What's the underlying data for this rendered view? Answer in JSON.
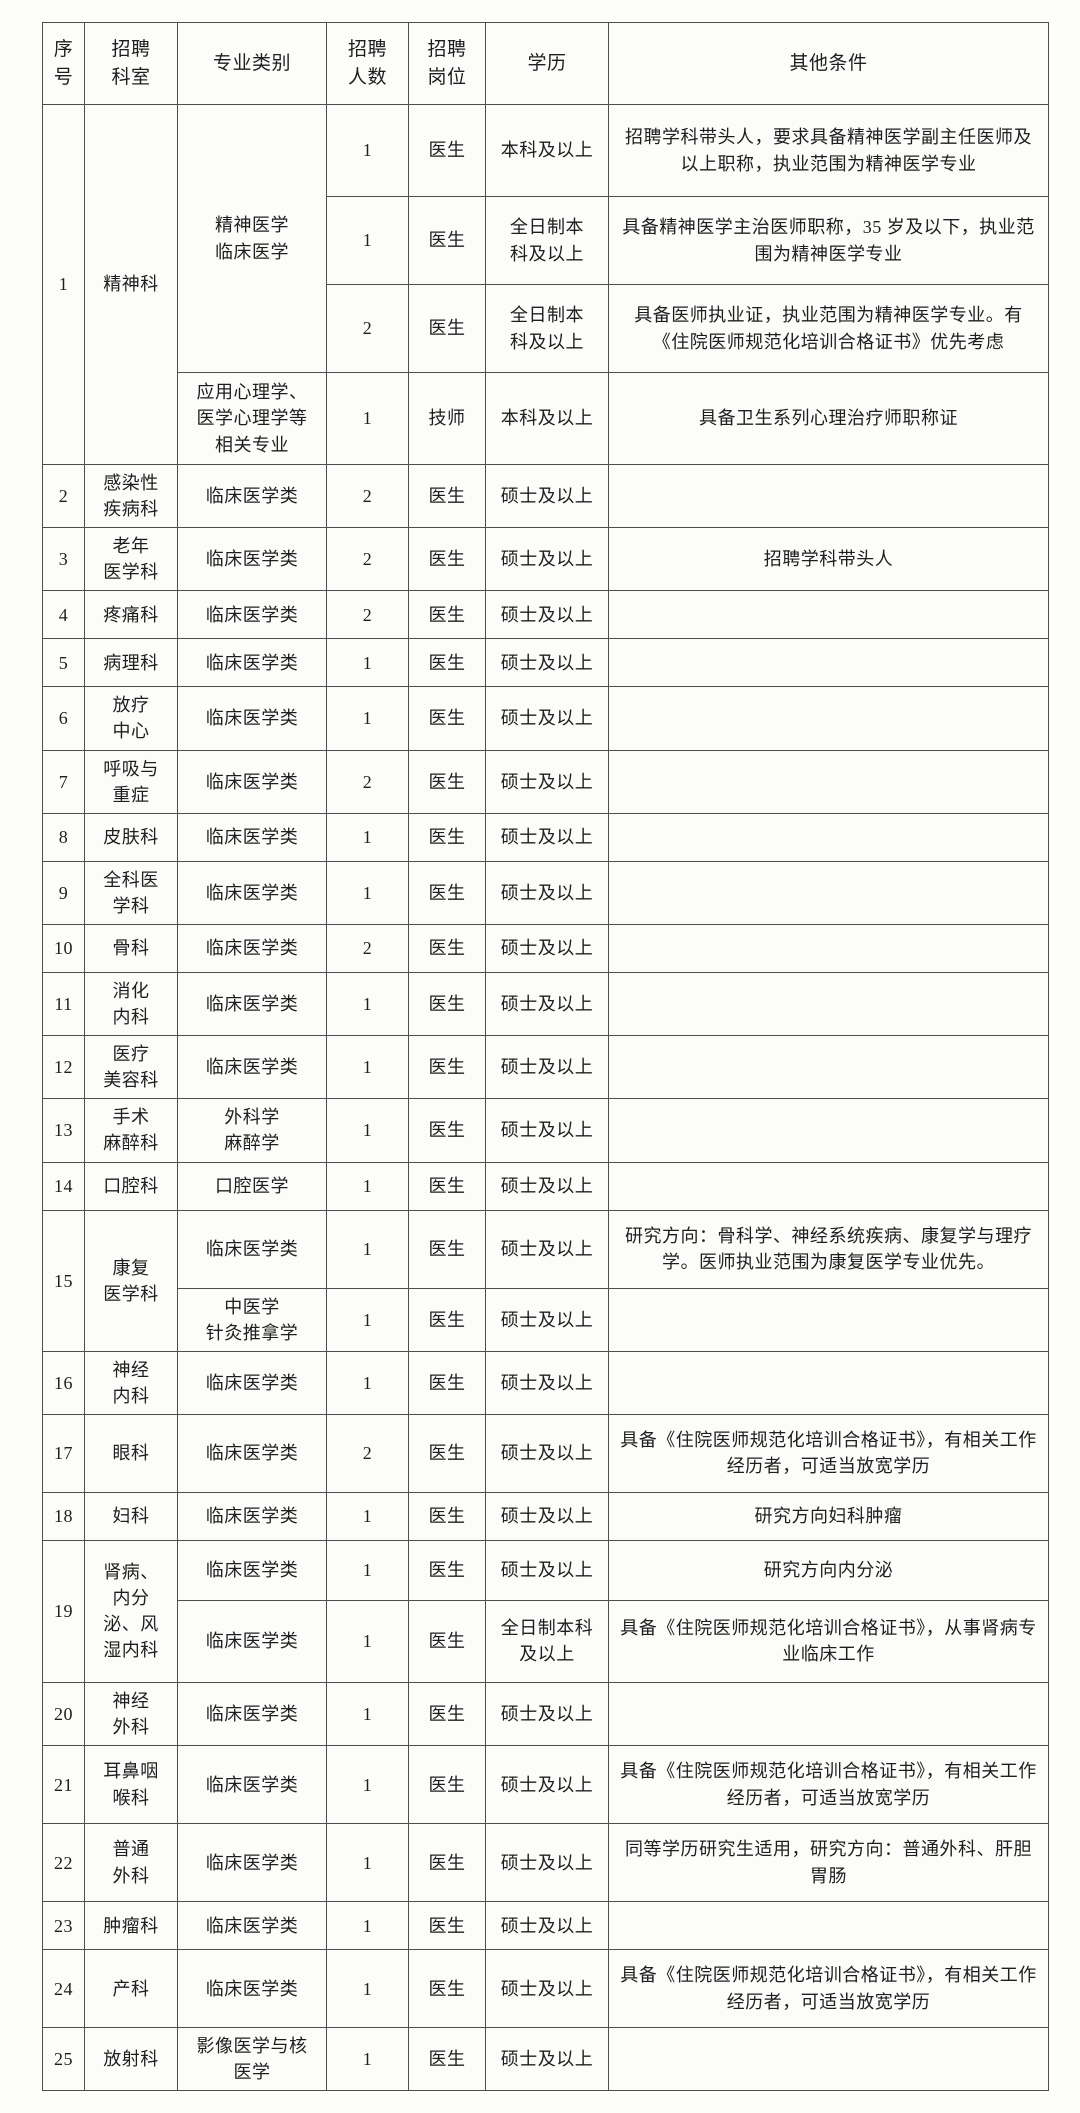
{
  "colors": {
    "page_background": "#fdfdfb",
    "table_background": "#fcfcfa",
    "border": "#4e4e4e",
    "text": "#1e1e1e"
  },
  "table": {
    "headers": [
      "序\n号",
      "招聘\n科室",
      "专业类别",
      "招聘\n人数",
      "招聘\n岗位",
      "学历",
      "其他条件"
    ],
    "rows": [
      {
        "no": [
          "1",
          4
        ],
        "dept": [
          "精神科",
          4
        ],
        "spec": [
          "精神医学\n临床医学",
          3
        ],
        "cnt": "1",
        "post": "医生",
        "edu": "本科及以上",
        "cond": "招聘学科带头人，要求具备精神医学副主任医师及以上职称，执业范围为精神医学专业"
      },
      {
        "cnt": "1",
        "post": "医生",
        "edu": "全日制本\n科及以上",
        "cond": "具备精神医学主治医师职称，35 岁及以下，执业范围为精神医学专业"
      },
      {
        "cnt": "2",
        "post": "医生",
        "edu": "全日制本\n科及以上",
        "cond": "具备医师执业证，执业范围为精神医学专业。有《住院医师规范化培训合格证书》优先考虑"
      },
      {
        "spec": "应用心理学、\n医学心理学等\n相关专业",
        "cnt": "1",
        "post": "技师",
        "edu": "本科及以上",
        "cond": "具备卫生系列心理治疗师职称证"
      },
      {
        "no": "2",
        "dept": "感染性\n疾病科",
        "spec": "临床医学类",
        "cnt": "2",
        "post": "医生",
        "edu": "硕士及以上",
        "cond": ""
      },
      {
        "no": "3",
        "dept": "老年\n医学科",
        "spec": "临床医学类",
        "cnt": "2",
        "post": "医生",
        "edu": "硕士及以上",
        "cond": "招聘学科带头人"
      },
      {
        "no": "4",
        "dept": "疼痛科",
        "spec": "临床医学类",
        "cnt": "2",
        "post": "医生",
        "edu": "硕士及以上",
        "cond": ""
      },
      {
        "no": "5",
        "dept": "病理科",
        "spec": "临床医学类",
        "cnt": "1",
        "post": "医生",
        "edu": "硕士及以上",
        "cond": ""
      },
      {
        "no": "6",
        "dept": "放疗\n中心",
        "spec": "临床医学类",
        "cnt": "1",
        "post": "医生",
        "edu": "硕士及以上",
        "cond": ""
      },
      {
        "no": "7",
        "dept": "呼吸与\n重症",
        "spec": "临床医学类",
        "cnt": "2",
        "post": "医生",
        "edu": "硕士及以上",
        "cond": ""
      },
      {
        "no": "8",
        "dept": "皮肤科",
        "spec": "临床医学类",
        "cnt": "1",
        "post": "医生",
        "edu": "硕士及以上",
        "cond": ""
      },
      {
        "no": "9",
        "dept": "全科医\n学科",
        "spec": "临床医学类",
        "cnt": "1",
        "post": "医生",
        "edu": "硕士及以上",
        "cond": ""
      },
      {
        "no": "10",
        "dept": "骨科",
        "spec": "临床医学类",
        "cnt": "2",
        "post": "医生",
        "edu": "硕士及以上",
        "cond": ""
      },
      {
        "no": "11",
        "dept": "消化\n内科",
        "spec": "临床医学类",
        "cnt": "1",
        "post": "医生",
        "edu": "硕士及以上",
        "cond": ""
      },
      {
        "no": "12",
        "dept": "医疗\n美容科",
        "spec": "临床医学类",
        "cnt": "1",
        "post": "医生",
        "edu": "硕士及以上",
        "cond": ""
      },
      {
        "no": "13",
        "dept": "手术\n麻醉科",
        "spec": "外科学\n麻醉学",
        "cnt": "1",
        "post": "医生",
        "edu": "硕士及以上",
        "cond": ""
      },
      {
        "no": "14",
        "dept": "口腔科",
        "spec": "口腔医学",
        "cnt": "1",
        "post": "医生",
        "edu": "硕士及以上",
        "cond": ""
      },
      {
        "no": [
          "15",
          2
        ],
        "dept": [
          "康复\n医学科",
          2
        ],
        "spec": "临床医学类",
        "cnt": "1",
        "post": "医生",
        "edu": "硕士及以上",
        "cond": "研究方向：骨科学、神经系统疾病、康复学与理疗学。医师执业范围为康复医学专业优先。"
      },
      {
        "spec": "中医学\n针灸推拿学",
        "cnt": "1",
        "post": "医生",
        "edu": "硕士及以上",
        "cond": ""
      },
      {
        "no": "16",
        "dept": "神经\n内科",
        "spec": "临床医学类",
        "cnt": "1",
        "post": "医生",
        "edu": "硕士及以上",
        "cond": ""
      },
      {
        "no": "17",
        "dept": "眼科",
        "spec": "临床医学类",
        "cnt": "2",
        "post": "医生",
        "edu": "硕士及以上",
        "cond": "具备《住院医师规范化培训合格证书》，有相关工作经历者，可适当放宽学历"
      },
      {
        "no": "18",
        "dept": "妇科",
        "spec": "临床医学类",
        "cnt": "1",
        "post": "医生",
        "edu": "硕士及以上",
        "cond": "研究方向妇科肿瘤"
      },
      {
        "no": [
          "19",
          2
        ],
        "dept": [
          "肾病、\n内分\n泌、风\n湿内科",
          2
        ],
        "spec": "临床医学类",
        "cnt": "1",
        "post": "医生",
        "edu": "硕士及以上",
        "cond": "研究方向内分泌"
      },
      {
        "spec": "临床医学类",
        "cnt": "1",
        "post": "医生",
        "edu": "全日制本科\n及以上",
        "cond": "具备《住院医师规范化培训合格证书》，从事肾病专业临床工作"
      },
      {
        "no": "20",
        "dept": "神经\n外科",
        "spec": "临床医学类",
        "cnt": "1",
        "post": "医生",
        "edu": "硕士及以上",
        "cond": ""
      },
      {
        "no": "21",
        "dept": "耳鼻咽\n喉科",
        "spec": "临床医学类",
        "cnt": "1",
        "post": "医生",
        "edu": "硕士及以上",
        "cond": "具备《住院医师规范化培训合格证书》，有相关工作经历者，可适当放宽学历"
      },
      {
        "no": "22",
        "dept": "普通\n外科",
        "spec": "临床医学类",
        "cnt": "1",
        "post": "医生",
        "edu": "硕士及以上",
        "cond": "同等学历研究生适用，研究方向：普通外科、肝胆胃肠"
      },
      {
        "no": "23",
        "dept": "肿瘤科",
        "spec": "临床医学类",
        "cnt": "1",
        "post": "医生",
        "edu": "硕士及以上",
        "cond": ""
      },
      {
        "no": "24",
        "dept": "产科",
        "spec": "临床医学类",
        "cnt": "1",
        "post": "医生",
        "edu": "硕士及以上",
        "cond": "具备《住院医师规范化培训合格证书》，有相关工作经历者，可适当放宽学历"
      },
      {
        "no": "25",
        "dept": "放射科",
        "spec": "影像医学与核\n医学",
        "cnt": "1",
        "post": "医生",
        "edu": "硕士及以上",
        "cond": ""
      }
    ]
  }
}
